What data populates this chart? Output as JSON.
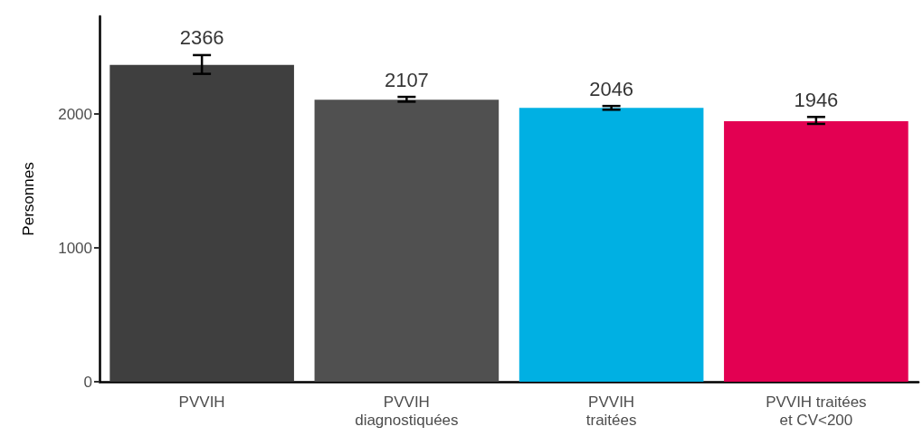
{
  "chart_data": {
    "type": "bar",
    "ylabel": "Personnes",
    "categories": [
      "PVVIH",
      "PVVIH\ndiagnostiquées",
      "PVVIH\ntraitées",
      "PVVIH traitées\net CV<200"
    ],
    "values": [
      2366,
      2107,
      2046,
      1946
    ],
    "colors": [
      "#3f3f3f",
      "#505050",
      "#00b0e3",
      "#e30052"
    ],
    "errors": [
      [
        2300,
        2440
      ],
      [
        2092,
        2128
      ],
      [
        2032,
        2060
      ],
      [
        1926,
        1978
      ]
    ],
    "data_labels": true,
    "ylim": [
      0,
      2730
    ],
    "yticks": [
      0,
      1000,
      2000
    ],
    "grid": false
  }
}
